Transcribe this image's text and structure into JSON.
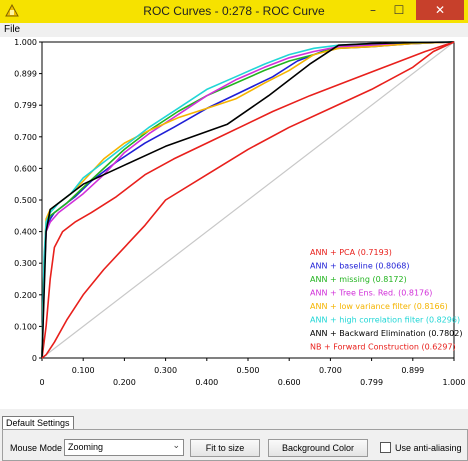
{
  "window": {
    "title": "ROC Curves - 0:278 - ROC Curve",
    "controls": {
      "minimize": "–",
      "maximize": "☐",
      "close": "✕"
    },
    "title_bar_color": "#f6e200",
    "close_color": "#c7402b"
  },
  "menu": {
    "items": [
      "File"
    ]
  },
  "chart_data": {
    "type": "line",
    "xlim": [
      0,
      1
    ],
    "ylim": [
      0,
      1
    ],
    "x_ticks": [
      "0",
      "0.100",
      "0.200",
      "0.300",
      "0.400",
      "0.500",
      "0.600",
      "0.700",
      "0.799",
      "0.899",
      "1.000"
    ],
    "y_ticks": [
      "1.000",
      "0.899",
      "0.799",
      "0.700",
      "0.600",
      "0.500",
      "0.400",
      "0.300",
      "0.200",
      "0.100",
      "0"
    ],
    "grid": false,
    "legend_position": "bottom-right",
    "diagonal": {
      "color": "#c8c8c8",
      "x": [
        0,
        1
      ],
      "y": [
        0,
        1
      ]
    },
    "series": [
      {
        "name": "ANN + PCA (0.7193)",
        "color": "#e8201c",
        "x": [
          0,
          0.01,
          0.02,
          0.03,
          0.05,
          0.08,
          0.12,
          0.18,
          0.25,
          0.32,
          0.4,
          0.48,
          0.56,
          0.65,
          0.75,
          0.85,
          0.93,
          1.0
        ],
        "y": [
          0,
          0.1,
          0.25,
          0.35,
          0.4,
          0.43,
          0.46,
          0.51,
          0.58,
          0.63,
          0.68,
          0.73,
          0.78,
          0.83,
          0.88,
          0.93,
          0.97,
          1.0
        ]
      },
      {
        "name": "ANN + baseline (0.8068)",
        "color": "#1f1fd6",
        "x": [
          0,
          0.005,
          0.01,
          0.02,
          0.03,
          0.05,
          0.08,
          0.12,
          0.18,
          0.25,
          0.32,
          0.4,
          0.48,
          0.56,
          0.62,
          0.68,
          0.72,
          0.8,
          0.9,
          1.0
        ],
        "y": [
          0,
          0.25,
          0.4,
          0.44,
          0.46,
          0.48,
          0.51,
          0.56,
          0.62,
          0.68,
          0.73,
          0.79,
          0.84,
          0.89,
          0.94,
          0.97,
          0.98,
          0.985,
          0.995,
          1.0
        ]
      },
      {
        "name": "ANN + missing (0.8172)",
        "color": "#22b41f",
        "x": [
          0,
          0.005,
          0.01,
          0.02,
          0.04,
          0.06,
          0.1,
          0.15,
          0.2,
          0.26,
          0.33,
          0.4,
          0.47,
          0.54,
          0.6,
          0.66,
          0.72,
          0.8,
          0.9,
          1.0
        ],
        "y": [
          0,
          0.3,
          0.42,
          0.45,
          0.47,
          0.49,
          0.54,
          0.6,
          0.66,
          0.72,
          0.78,
          0.83,
          0.87,
          0.91,
          0.94,
          0.96,
          0.985,
          0.99,
          0.995,
          1.0
        ]
      },
      {
        "name": "ANN + Tree Ens. Red. (0.8176)",
        "color": "#d12fd9",
        "x": [
          0,
          0.005,
          0.01,
          0.02,
          0.04,
          0.07,
          0.1,
          0.15,
          0.2,
          0.26,
          0.33,
          0.4,
          0.47,
          0.54,
          0.6,
          0.66,
          0.72,
          0.8,
          0.9,
          1.0
        ],
        "y": [
          0,
          0.28,
          0.4,
          0.43,
          0.46,
          0.49,
          0.52,
          0.58,
          0.65,
          0.71,
          0.77,
          0.83,
          0.88,
          0.92,
          0.95,
          0.97,
          0.985,
          0.99,
          0.995,
          1.0
        ]
      },
      {
        "name": "ANN + low variance filter (0.8166)",
        "color": "#f5b400",
        "x": [
          0,
          0.005,
          0.01,
          0.02,
          0.04,
          0.07,
          0.1,
          0.15,
          0.2,
          0.26,
          0.33,
          0.4,
          0.47,
          0.54,
          0.6,
          0.66,
          0.72,
          0.8,
          0.9,
          1.0
        ],
        "y": [
          0,
          0.3,
          0.44,
          0.47,
          0.49,
          0.52,
          0.56,
          0.63,
          0.68,
          0.72,
          0.76,
          0.79,
          0.82,
          0.87,
          0.91,
          0.96,
          0.98,
          0.985,
          0.995,
          1.0
        ]
      },
      {
        "name": "ANN + high correlation filter (0.8296)",
        "color": "#21d6d6",
        "x": [
          0,
          0.005,
          0.01,
          0.02,
          0.04,
          0.07,
          0.1,
          0.15,
          0.2,
          0.26,
          0.33,
          0.4,
          0.47,
          0.54,
          0.6,
          0.66,
          0.72,
          0.8,
          0.9,
          1.0
        ],
        "y": [
          0,
          0.32,
          0.43,
          0.46,
          0.49,
          0.52,
          0.57,
          0.62,
          0.67,
          0.73,
          0.79,
          0.85,
          0.89,
          0.93,
          0.96,
          0.98,
          0.99,
          0.995,
          0.998,
          1.0
        ]
      },
      {
        "name": "ANN + Backward Elimination (0.7802)",
        "color": "#000000",
        "x": [
          0,
          0.01,
          0.02,
          0.05,
          0.1,
          0.2,
          0.3,
          0.45,
          0.55,
          0.65,
          0.72,
          0.8,
          0.9,
          1.0
        ],
        "y": [
          0,
          0.4,
          0.47,
          0.5,
          0.55,
          0.61,
          0.67,
          0.74,
          0.83,
          0.93,
          0.99,
          0.995,
          0.998,
          1.0
        ]
      },
      {
        "name": "NB + Forward Construction (0.6297)",
        "color": "#e8201c",
        "x": [
          0,
          0.01,
          0.03,
          0.06,
          0.1,
          0.15,
          0.2,
          0.25,
          0.3,
          0.4,
          0.5,
          0.6,
          0.7,
          0.8,
          0.9,
          0.95,
          1.0
        ],
        "y": [
          0,
          0.01,
          0.05,
          0.12,
          0.2,
          0.28,
          0.35,
          0.42,
          0.5,
          0.58,
          0.66,
          0.73,
          0.79,
          0.85,
          0.92,
          0.97,
          1.0
        ]
      }
    ]
  },
  "tab": {
    "label": "Default Settings"
  },
  "toolbar": {
    "mouse_mode_label": "Mouse Mode",
    "mouse_mode_value": "Zooming",
    "fit_label": "Fit to size",
    "background_label": "Background Color",
    "anti_alias_label": "Use anti-aliasing",
    "anti_alias_checked": false
  }
}
